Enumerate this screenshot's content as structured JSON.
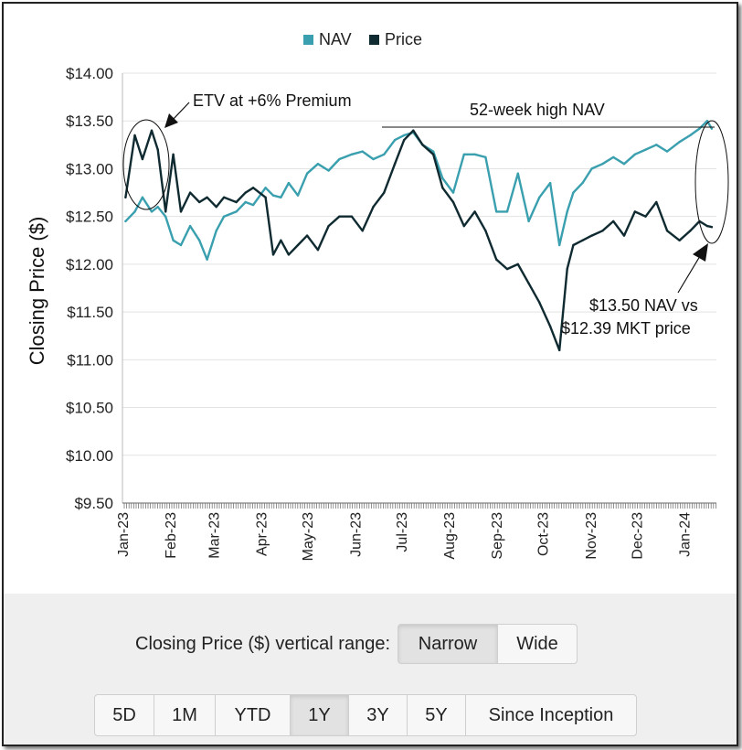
{
  "chart_data": {
    "type": "line",
    "legend": {
      "position": "top-center"
    },
    "ylabel": "Closing Price ($)",
    "ylim": [
      9.5,
      14.0
    ],
    "yticks": [
      "$14.00",
      "$13.50",
      "$13.00",
      "$12.50",
      "$12.00",
      "$11.50",
      "$11.00",
      "$10.50",
      "$10.00",
      "$9.50"
    ],
    "xticks": [
      "Jan-23",
      "Feb-23",
      "Mar-23",
      "Apr-23",
      "May-23",
      "Jun-23",
      "Jul-23",
      "Aug-23",
      "Sep-23",
      "Oct-23",
      "Nov-23",
      "Dec-23",
      "Jan-24"
    ],
    "grid": "horizontal",
    "x": [
      "2023-01-03",
      "2023-01-09",
      "2023-01-14",
      "2023-01-20",
      "2023-01-24",
      "2023-01-29",
      "2023-02-03",
      "2023-02-08",
      "2023-02-14",
      "2023-02-20",
      "2023-02-25",
      "2023-03-03",
      "2023-03-08",
      "2023-03-16",
      "2023-03-22",
      "2023-03-27",
      "2023-04-04",
      "2023-04-09",
      "2023-04-14",
      "2023-04-19",
      "2023-04-25",
      "2023-05-01",
      "2023-05-08",
      "2023-05-15",
      "2023-05-22",
      "2023-05-30",
      "2023-06-06",
      "2023-06-13",
      "2023-06-20",
      "2023-06-27",
      "2023-07-03",
      "2023-07-09",
      "2023-07-15",
      "2023-07-22",
      "2023-07-28",
      "2023-08-04",
      "2023-08-11",
      "2023-08-18",
      "2023-08-25",
      "2023-09-01",
      "2023-09-08",
      "2023-09-15",
      "2023-09-22",
      "2023-09-29",
      "2023-10-06",
      "2023-10-12",
      "2023-10-17",
      "2023-10-21",
      "2023-10-27",
      "2023-11-02",
      "2023-11-09",
      "2023-11-16",
      "2023-11-23",
      "2023-11-30",
      "2023-12-07",
      "2023-12-14",
      "2023-12-21",
      "2023-12-29",
      "2024-01-05",
      "2024-01-11",
      "2024-01-16",
      "2024-01-19"
    ],
    "series": [
      {
        "name": "NAV",
        "color": "#3a9fae",
        "values": [
          12.45,
          12.55,
          12.7,
          12.55,
          12.6,
          12.5,
          12.25,
          12.2,
          12.4,
          12.25,
          12.05,
          12.35,
          12.5,
          12.55,
          12.65,
          12.62,
          12.8,
          12.72,
          12.7,
          12.85,
          12.72,
          12.95,
          13.05,
          12.98,
          13.1,
          13.15,
          13.18,
          13.1,
          13.15,
          13.3,
          13.35,
          13.38,
          13.25,
          13.18,
          12.9,
          12.75,
          13.15,
          13.15,
          13.12,
          12.55,
          12.55,
          12.95,
          12.45,
          12.7,
          12.85,
          12.2,
          12.55,
          12.75,
          12.85,
          13.0,
          13.05,
          13.12,
          13.05,
          13.15,
          13.2,
          13.25,
          13.18,
          13.28,
          13.35,
          13.42,
          13.5,
          13.42
        ]
      },
      {
        "name": "Price",
        "color": "#0f2a30",
        "values": [
          12.7,
          13.35,
          13.1,
          13.4,
          13.2,
          12.55,
          13.15,
          12.55,
          12.75,
          12.65,
          12.7,
          12.6,
          12.7,
          12.65,
          12.75,
          12.8,
          12.7,
          12.1,
          12.25,
          12.1,
          12.2,
          12.3,
          12.15,
          12.4,
          12.5,
          12.5,
          12.35,
          12.6,
          12.75,
          13.05,
          13.3,
          13.4,
          13.25,
          13.15,
          12.8,
          12.65,
          12.4,
          12.55,
          12.35,
          12.05,
          11.95,
          12.0,
          11.8,
          11.6,
          11.35,
          11.1,
          11.95,
          12.2,
          12.25,
          12.3,
          12.35,
          12.45,
          12.3,
          12.55,
          12.5,
          12.65,
          12.35,
          12.25,
          12.35,
          12.45,
          12.4,
          12.39
        ]
      }
    ],
    "annotations": [
      {
        "text": "ETV at +6% Premium"
      },
      {
        "text": "52-week high NAV"
      },
      {
        "text_line1": "$13.50 NAV vs",
        "text_line2": "$12.39 MKT price"
      }
    ]
  },
  "controls": {
    "range_label": "Closing Price ($) vertical range:",
    "range_options": [
      {
        "label": "Narrow",
        "active": true
      },
      {
        "label": "Wide",
        "active": false
      }
    ],
    "periods": [
      {
        "label": "5D",
        "active": false
      },
      {
        "label": "1M",
        "active": false
      },
      {
        "label": "YTD",
        "active": false
      },
      {
        "label": "1Y",
        "active": true
      },
      {
        "label": "3Y",
        "active": false
      },
      {
        "label": "5Y",
        "active": false
      },
      {
        "label": "Since Inception",
        "active": false
      }
    ]
  }
}
